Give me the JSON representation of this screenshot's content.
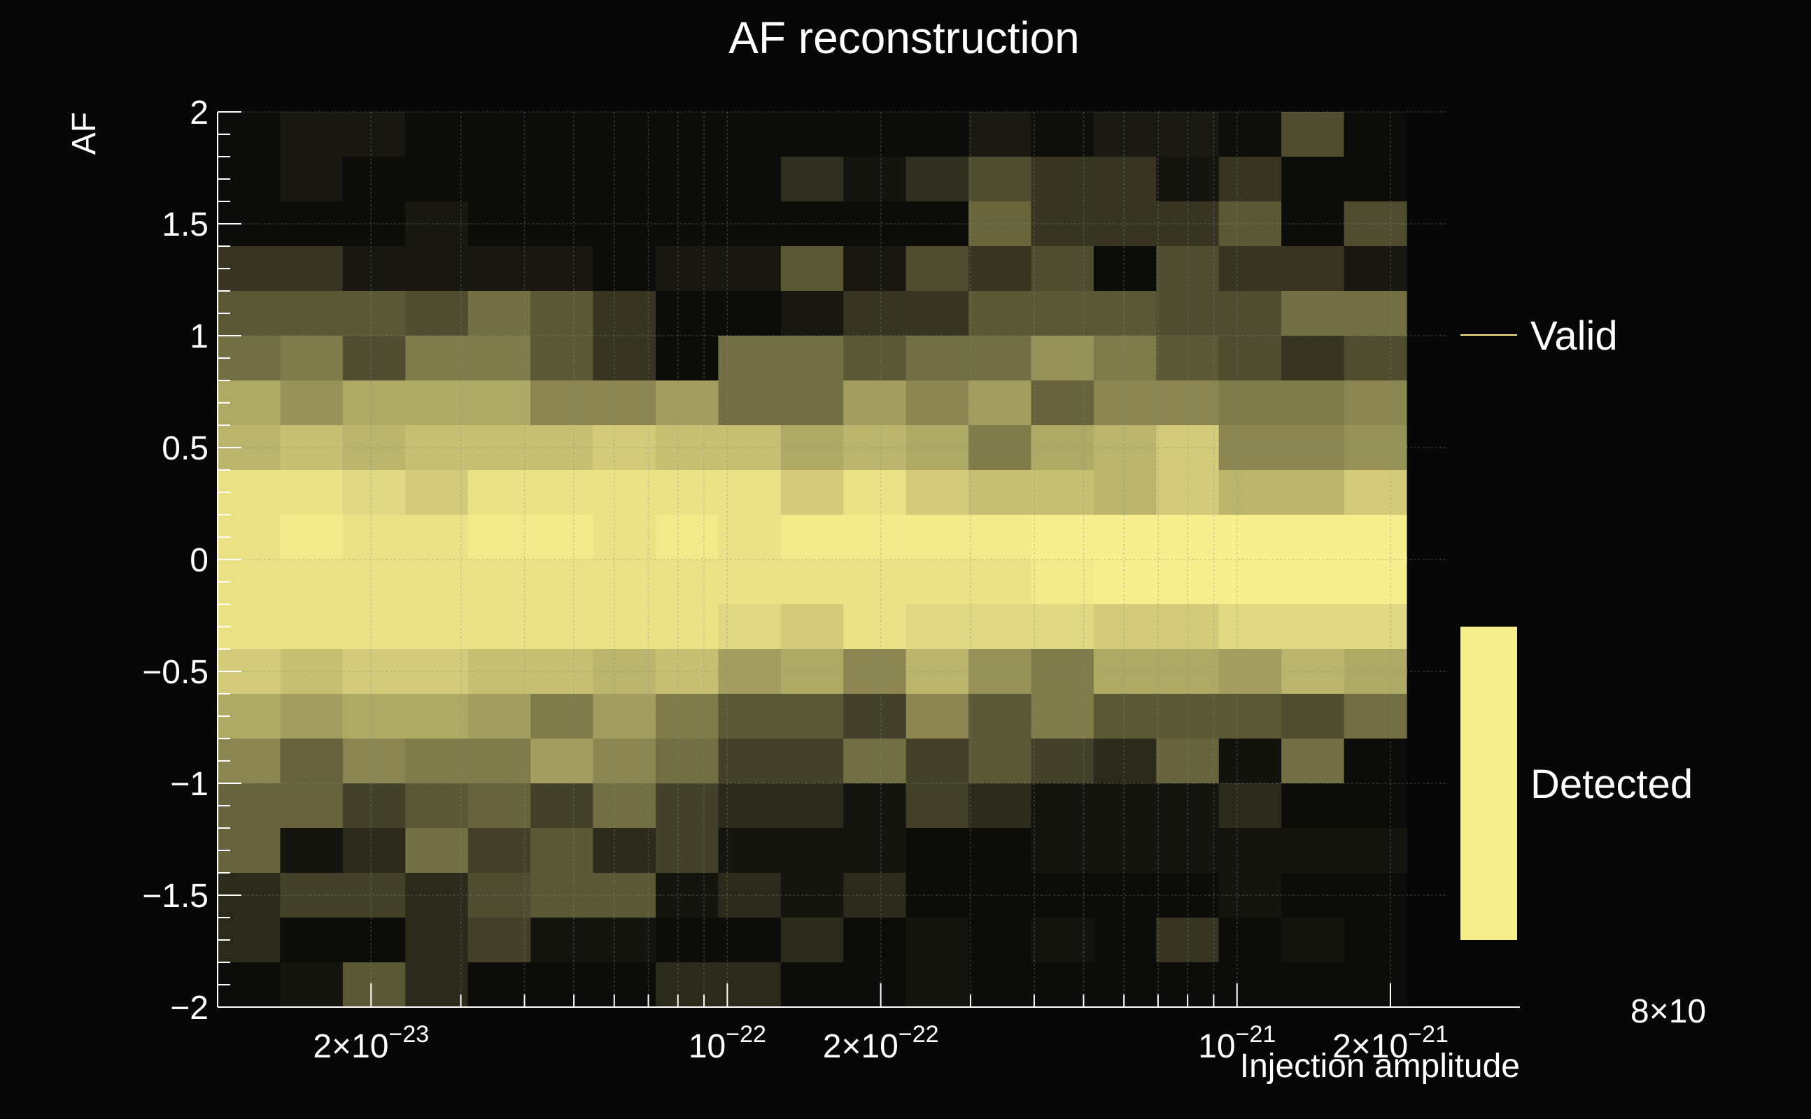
{
  "chart_data": {
    "type": "heatmap",
    "title": "AF reconstruction",
    "xlabel": "Injection amplitude",
    "ylabel": "AF",
    "xscale": "log",
    "xlim": [
      1e-23,
      2.6e-21
    ],
    "ylim": [
      -2,
      2
    ],
    "x_tick_labels": [
      {
        "value": 2e-23,
        "mant": "2×10",
        "exp": "−23"
      },
      {
        "value": 1e-22,
        "mant": "10",
        "exp": "−22"
      },
      {
        "value": 2e-22,
        "mant": "2×10",
        "exp": "−22"
      },
      {
        "value": 1e-21,
        "mant": "10",
        "exp": "−21"
      },
      {
        "value": 2e-21,
        "mant": "2×10",
        "exp": "−21"
      }
    ],
    "x_overflow_label": "8×10",
    "y_ticks": [
      2,
      1.5,
      1,
      0.5,
      0,
      -0.5,
      -1,
      -1.5,
      -2
    ],
    "y_tick_labels": [
      "2",
      "1.5",
      "1",
      "0.5",
      "0",
      "−0.5",
      "−1",
      "−1.5",
      "−2"
    ],
    "grid": true,
    "legend": {
      "placement": "right",
      "entries": [
        {
          "label": "Valid",
          "kind": "line",
          "color": "#f7ee8e"
        },
        {
          "label": "Detected",
          "kind": "box",
          "color": "#f7ee8e"
        }
      ]
    },
    "colors": {
      "background": "#070707",
      "cell": "#f7ee8e",
      "grid": "#555555",
      "text": "#ffffff"
    },
    "n_x_bins": 19,
    "y_bins": [
      1.9,
      1.7,
      1.5,
      1.3,
      1.1,
      0.9,
      0.7,
      0.5,
      0.3,
      0.1,
      -0.1,
      -0.3,
      -0.5,
      -0.7,
      -0.9,
      -1.1,
      -1.3,
      -1.5,
      -1.7,
      -1.9
    ],
    "z_values": [
      [
        0.02,
        0.07,
        0.07,
        0.02,
        0.02,
        0.02,
        0.02,
        0.02,
        0.02,
        0.02,
        0.02,
        0.02,
        0.08,
        0.03,
        0.08,
        0.08,
        0.03,
        0.3,
        0.02
      ],
      [
        0.02,
        0.07,
        0.02,
        0.02,
        0.02,
        0.02,
        0.02,
        0.02,
        0.02,
        0.17,
        0.06,
        0.17,
        0.3,
        0.2,
        0.2,
        0.06,
        0.2,
        0.02,
        0.02
      ],
      [
        0.02,
        0.02,
        0.02,
        0.07,
        0.02,
        0.02,
        0.02,
        0.02,
        0.02,
        0.02,
        0.02,
        0.02,
        0.41,
        0.2,
        0.2,
        0.2,
        0.35,
        0.02,
        0.3
      ],
      [
        0.2,
        0.2,
        0.07,
        0.07,
        0.07,
        0.07,
        0.02,
        0.07,
        0.07,
        0.35,
        0.07,
        0.3,
        0.2,
        0.3,
        0.02,
        0.3,
        0.2,
        0.2,
        0.07
      ],
      [
        0.35,
        0.35,
        0.35,
        0.3,
        0.45,
        0.35,
        0.2,
        0.02,
        0.02,
        0.07,
        0.2,
        0.2,
        0.35,
        0.35,
        0.35,
        0.3,
        0.3,
        0.45,
        0.45
      ],
      [
        0.45,
        0.5,
        0.3,
        0.5,
        0.5,
        0.35,
        0.2,
        0.02,
        0.45,
        0.45,
        0.35,
        0.45,
        0.45,
        0.6,
        0.5,
        0.35,
        0.3,
        0.2,
        0.3
      ],
      [
        0.7,
        0.6,
        0.7,
        0.7,
        0.7,
        0.55,
        0.55,
        0.65,
        0.45,
        0.45,
        0.65,
        0.55,
        0.65,
        0.4,
        0.55,
        0.55,
        0.5,
        0.5,
        0.55
      ],
      [
        0.75,
        0.8,
        0.75,
        0.8,
        0.8,
        0.8,
        0.85,
        0.8,
        0.8,
        0.7,
        0.75,
        0.7,
        0.5,
        0.7,
        0.75,
        0.85,
        0.55,
        0.55,
        0.6
      ],
      [
        0.95,
        0.95,
        0.9,
        0.85,
        0.95,
        0.95,
        0.95,
        0.95,
        0.95,
        0.85,
        0.95,
        0.85,
        0.8,
        0.8,
        0.75,
        0.85,
        0.75,
        0.75,
        0.85
      ],
      [
        0.95,
        0.98,
        0.95,
        0.95,
        0.98,
        0.98,
        0.95,
        0.98,
        0.95,
        0.98,
        0.98,
        0.98,
        0.98,
        1.0,
        1.0,
        1.0,
        1.0,
        1.0,
        1.0
      ],
      [
        0.95,
        0.95,
        0.95,
        0.95,
        0.95,
        0.95,
        0.95,
        0.95,
        0.95,
        0.95,
        0.95,
        0.95,
        0.95,
        0.98,
        1.0,
        1.0,
        1.0,
        1.0,
        1.0
      ],
      [
        0.95,
        0.95,
        0.95,
        0.95,
        0.95,
        0.95,
        0.95,
        0.95,
        0.9,
        0.85,
        0.95,
        0.9,
        0.9,
        0.9,
        0.85,
        0.85,
        0.9,
        0.9,
        0.9
      ],
      [
        0.85,
        0.8,
        0.85,
        0.85,
        0.8,
        0.8,
        0.75,
        0.8,
        0.65,
        0.7,
        0.55,
        0.75,
        0.6,
        0.5,
        0.7,
        0.7,
        0.65,
        0.75,
        0.7
      ],
      [
        0.7,
        0.65,
        0.7,
        0.7,
        0.65,
        0.5,
        0.65,
        0.5,
        0.35,
        0.35,
        0.25,
        0.55,
        0.35,
        0.5,
        0.35,
        0.35,
        0.35,
        0.3,
        0.45
      ],
      [
        0.55,
        0.4,
        0.55,
        0.5,
        0.5,
        0.65,
        0.55,
        0.45,
        0.25,
        0.25,
        0.45,
        0.25,
        0.35,
        0.25,
        0.15,
        0.4,
        0.05,
        0.45,
        0.02
      ],
      [
        0.4,
        0.4,
        0.25,
        0.35,
        0.4,
        0.25,
        0.45,
        0.25,
        0.15,
        0.15,
        0.06,
        0.25,
        0.15,
        0.06,
        0.06,
        0.06,
        0.15,
        0.02,
        0.02
      ],
      [
        0.4,
        0.06,
        0.15,
        0.45,
        0.25,
        0.35,
        0.15,
        0.25,
        0.06,
        0.06,
        0.06,
        0.02,
        0.02,
        0.06,
        0.06,
        0.06,
        0.06,
        0.06,
        0.06
      ],
      [
        0.15,
        0.25,
        0.25,
        0.15,
        0.3,
        0.35,
        0.35,
        0.06,
        0.15,
        0.06,
        0.15,
        0.02,
        0.02,
        0.02,
        0.02,
        0.02,
        0.06,
        0.02,
        0.02
      ],
      [
        0.15,
        0.02,
        0.02,
        0.15,
        0.25,
        0.06,
        0.06,
        0.02,
        0.02,
        0.15,
        0.02,
        0.06,
        0.02,
        0.06,
        0.02,
        0.2,
        0.02,
        0.06,
        0.02
      ],
      [
        0.02,
        0.06,
        0.35,
        0.15,
        0.02,
        0.02,
        0.02,
        0.15,
        0.15,
        0.02,
        0.02,
        0.06,
        0.02,
        0.02,
        0.02,
        0.02,
        0.02,
        0.02,
        0.02
      ]
    ]
  }
}
